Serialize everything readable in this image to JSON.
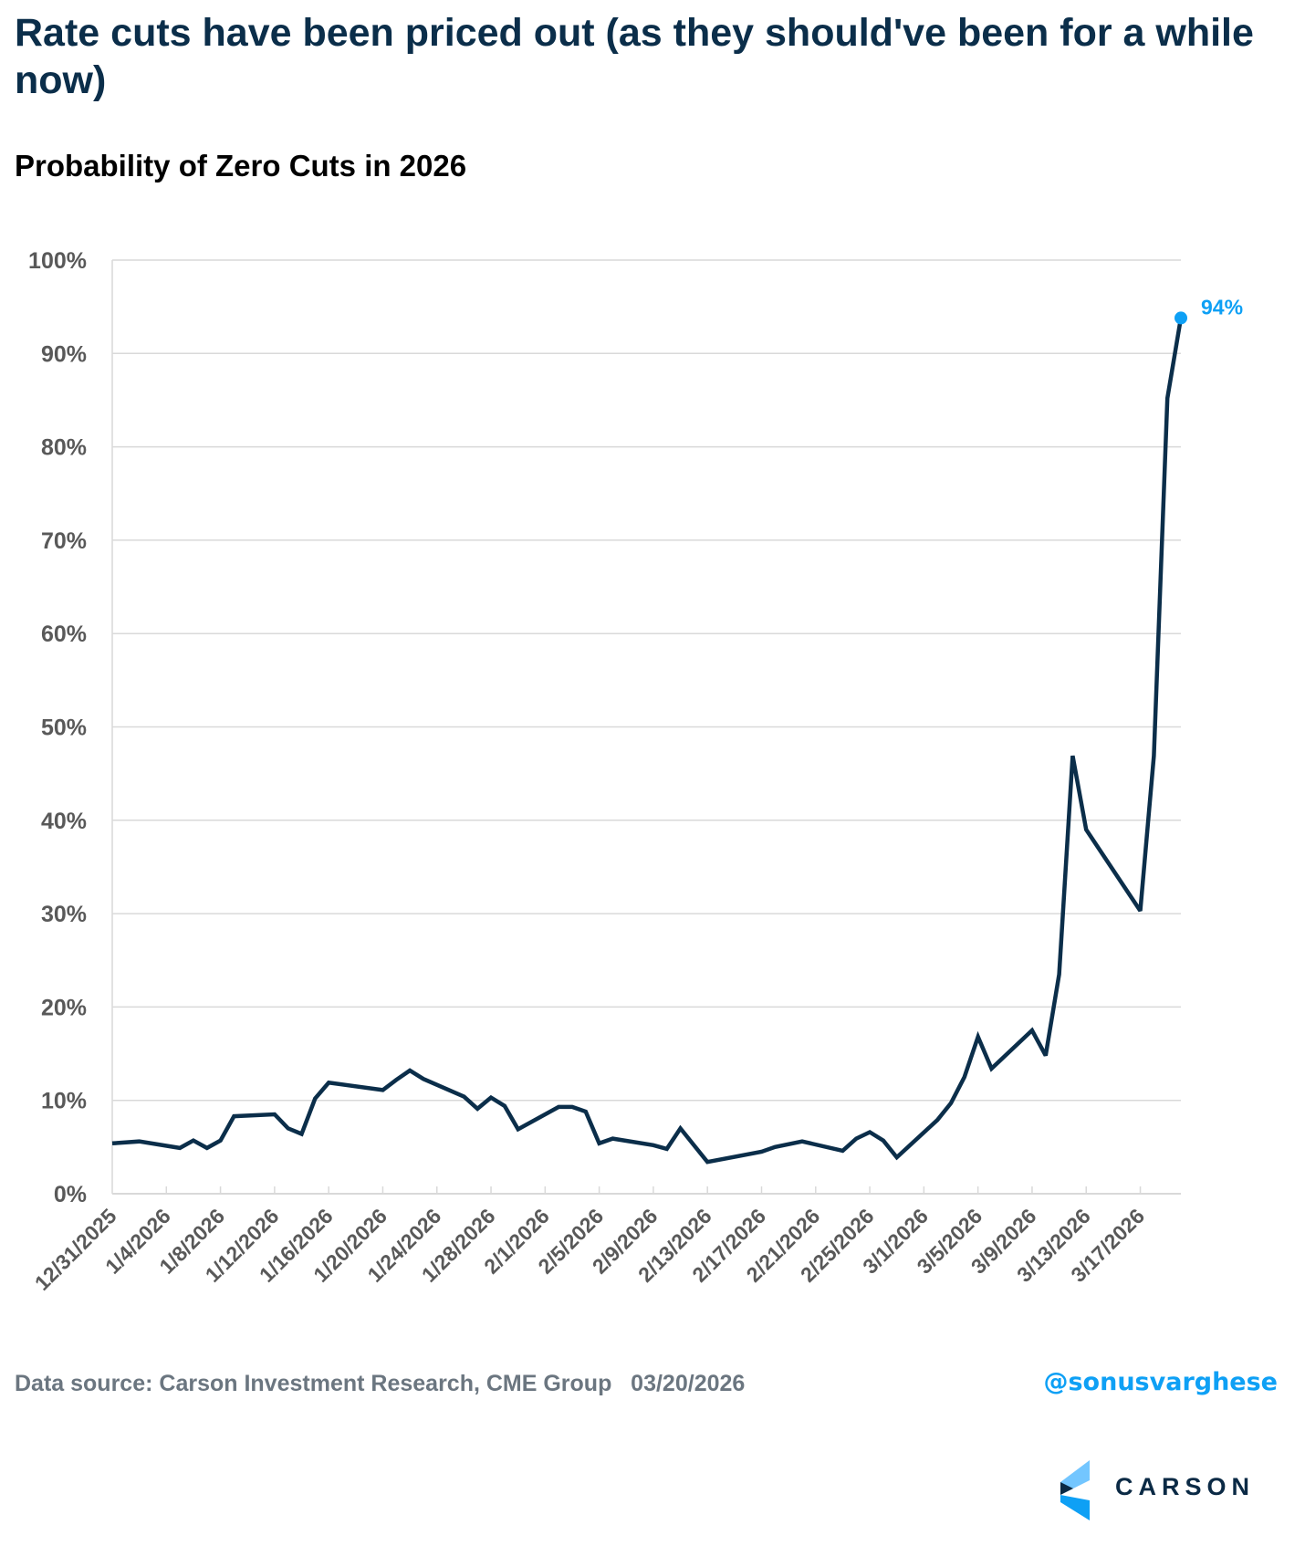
{
  "title": "Rate cuts have been priced out (as they should've been for a while now)",
  "subtitle": "Probability of Zero Cuts in 2026",
  "footer": {
    "source": "Data source: Carson Investment Research, CME Group   03/20/2026",
    "handle": "@sonusvarghese",
    "logo_text": "CARSON",
    "logo_icon": "carson-chevron-logo"
  },
  "colors": {
    "title": "#0b2e4a",
    "line": "#0b2e4a",
    "accent": "#0ea0f5",
    "axis_text": "#595959",
    "grid": "#d9d9d9"
  },
  "chart_data": {
    "type": "line",
    "title": "Probability of Zero Cuts in 2026",
    "xlabel": "",
    "ylabel": "",
    "ylim": [
      0,
      100
    ],
    "y_ticks": [
      "0%",
      "10%",
      "20%",
      "30%",
      "40%",
      "50%",
      "60%",
      "70%",
      "80%",
      "90%",
      "100%"
    ],
    "x_range": [
      "12/31/2025",
      "3/20/2026"
    ],
    "x_tick_labels": [
      "12/31/2025",
      "1/4/2026",
      "1/8/2026",
      "1/12/2026",
      "1/16/2026",
      "1/20/2026",
      "1/24/2026",
      "1/28/2026",
      "2/1/2026",
      "2/5/2026",
      "2/9/2026",
      "2/13/2026",
      "2/17/2026",
      "2/21/2026",
      "2/25/2026",
      "3/1/2026",
      "3/5/2026",
      "3/9/2026",
      "3/13/2026",
      "3/17/2026"
    ],
    "grid": true,
    "legend": "none",
    "end_label": "94%",
    "series": [
      {
        "name": "Probability of Zero Cuts in 2026",
        "x": [
          "12/31/2025",
          "1/2/2026",
          "1/5/2026",
          "1/6/2026",
          "1/7/2026",
          "1/8/2026",
          "1/9/2026",
          "1/12/2026",
          "1/13/2026",
          "1/14/2026",
          "1/15/2026",
          "1/16/2026",
          "1/20/2026",
          "1/21/2026",
          "1/22/2026",
          "1/23/2026",
          "1/26/2026",
          "1/27/2026",
          "1/28/2026",
          "1/29/2026",
          "1/30/2026",
          "2/2/2026",
          "2/3/2026",
          "2/4/2026",
          "2/5/2026",
          "2/6/2026",
          "2/9/2026",
          "2/10/2026",
          "2/11/2026",
          "2/13/2026",
          "2/17/2026",
          "2/18/2026",
          "2/20/2026",
          "2/23/2026",
          "2/24/2026",
          "2/25/2026",
          "2/26/2026",
          "2/27/2026",
          "3/2/2026",
          "3/3/2026",
          "3/4/2026",
          "3/5/2026",
          "3/6/2026",
          "3/9/2026",
          "3/10/2026",
          "3/11/2026",
          "3/12/2026",
          "3/13/2026",
          "3/17/2026",
          "3/18/2026",
          "3/19/2026",
          "3/20/2026"
        ],
        "day_offsets": [
          0,
          2,
          5,
          6,
          7,
          8,
          9,
          12,
          13,
          14,
          15,
          16,
          20,
          21,
          22,
          23,
          26,
          27,
          28,
          29,
          30,
          33,
          34,
          35,
          36,
          37,
          40,
          41,
          42,
          44,
          48,
          49,
          51,
          54,
          55,
          56,
          57,
          58,
          61,
          62,
          63,
          64,
          65,
          68,
          69,
          70,
          71,
          72,
          76,
          77,
          78,
          79
        ],
        "values": [
          5.4,
          5.6,
          4.9,
          5.7,
          4.9,
          5.7,
          8.3,
          8.5,
          7.0,
          6.4,
          10.2,
          11.9,
          11.1,
          12.2,
          13.2,
          12.3,
          10.4,
          9.1,
          10.3,
          9.4,
          6.9,
          9.3,
          9.3,
          8.8,
          5.4,
          5.9,
          5.2,
          4.8,
          7.0,
          3.4,
          4.5,
          5.0,
          5.6,
          4.6,
          5.9,
          6.6,
          5.7,
          3.9,
          7.9,
          9.7,
          12.5,
          16.8,
          13.4,
          17.5,
          14.8,
          23.5,
          46.9,
          39.0,
          30.3,
          46.9,
          85.2,
          93.8
        ]
      }
    ]
  }
}
